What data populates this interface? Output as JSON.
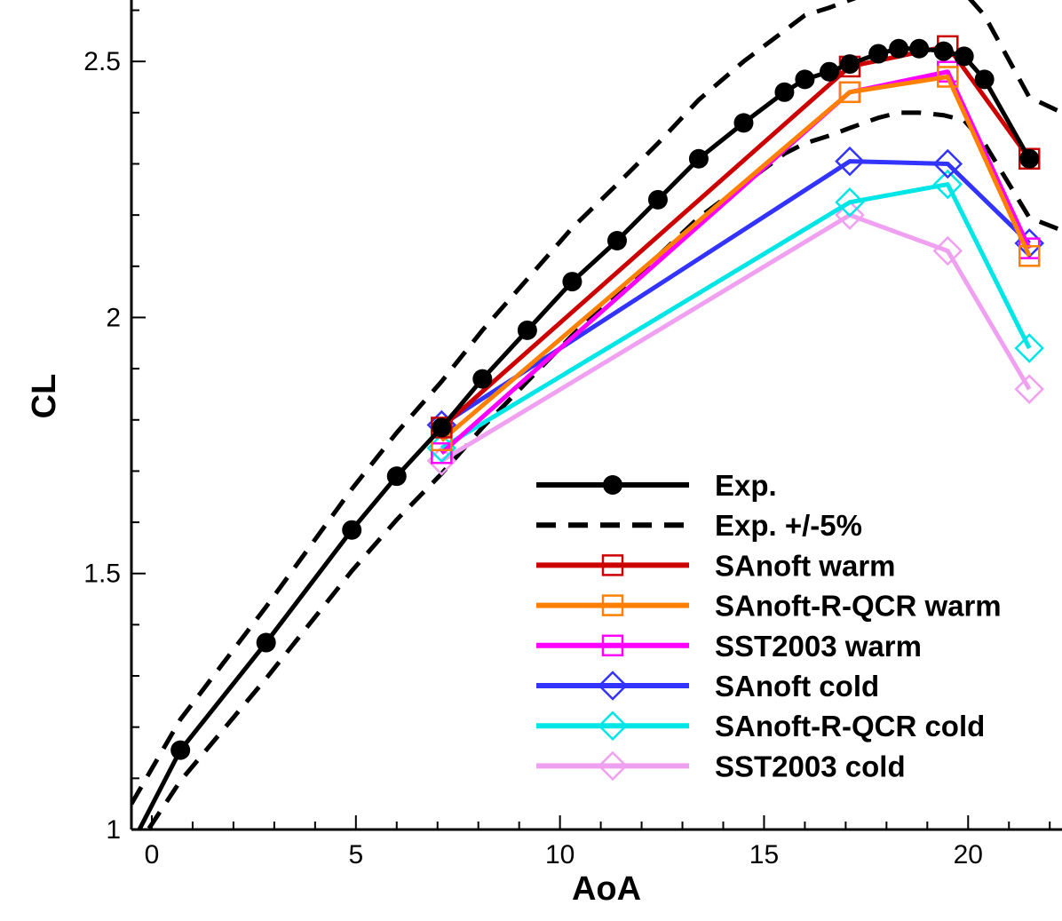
{
  "chart_data": {
    "type": "line",
    "title": "",
    "xlabel": "AoA",
    "ylabel": "CL",
    "xlim": [
      -0.5,
      22.3
    ],
    "ylim": [
      1.0,
      2.62
    ],
    "xticks": [
      0,
      5,
      10,
      15,
      20
    ],
    "yticks": [
      1,
      1.5,
      2,
      2.5
    ],
    "x_tick_labels": [
      "0",
      "5",
      "10",
      "15",
      "20"
    ],
    "y_tick_labels": [
      "1",
      "1.5",
      "2",
      "2.5"
    ],
    "grid": false,
    "legend_position": "bottom-right",
    "series": [
      {
        "name": "Exp.",
        "color": "#000000",
        "style": "solid",
        "marker": "circle",
        "x": [
          0.7,
          2.8,
          4.9,
          6.0,
          7.1,
          8.1,
          9.2,
          10.3,
          11.4,
          12.4,
          13.4,
          14.5,
          15.5,
          16.0,
          16.6,
          17.1,
          17.8,
          18.3,
          18.8,
          19.4,
          19.9,
          20.4,
          21.5
        ],
        "y": [
          1.155,
          1.365,
          1.585,
          1.69,
          1.785,
          1.88,
          1.975,
          2.07,
          2.15,
          2.23,
          2.31,
          2.38,
          2.44,
          2.465,
          2.48,
          2.495,
          2.515,
          2.525,
          2.525,
          2.52,
          2.51,
          2.465,
          2.31
        ]
      },
      {
        "name": "Exp. +/-5%",
        "color": "#000000",
        "style": "dashed",
        "marker": "none",
        "x": [
          -0.5,
          0.7,
          2.8,
          4.9,
          6.0,
          7.1,
          8.1,
          9.2,
          10.3,
          11.4,
          12.4,
          13.4,
          14.5,
          15.5,
          16.0,
          16.6,
          17.1,
          17.8,
          18.3,
          18.8,
          19.4,
          19.9,
          20.4,
          21.5,
          22.3
        ],
        "y_upper": [
          1.05,
          1.215,
          1.435,
          1.665,
          1.775,
          1.875,
          1.975,
          2.075,
          2.175,
          2.26,
          2.34,
          2.425,
          2.5,
          2.56,
          2.59,
          2.605,
          2.62,
          2.64,
          2.65,
          2.65,
          2.645,
          2.635,
          2.59,
          2.43,
          2.4
        ],
        "y_lower": [
          0.95,
          1.095,
          1.295,
          1.505,
          1.605,
          1.695,
          1.785,
          1.875,
          1.965,
          2.045,
          2.12,
          2.195,
          2.26,
          2.32,
          2.34,
          2.355,
          2.37,
          2.39,
          2.4,
          2.4,
          2.395,
          2.385,
          2.34,
          2.195,
          2.17
        ]
      },
      {
        "name": "SAnoft warm",
        "color": "#cc0000",
        "style": "solid",
        "marker": "square",
        "x": [
          7.1,
          17.1,
          19.5,
          21.5
        ],
        "y": [
          1.785,
          2.49,
          2.53,
          2.31
        ]
      },
      {
        "name": "SAnoft-R-QCR warm",
        "color": "#ff8000",
        "style": "solid",
        "marker": "square",
        "x": [
          7.1,
          17.1,
          19.5,
          21.5
        ],
        "y": [
          1.76,
          2.44,
          2.47,
          2.12
        ]
      },
      {
        "name": "SST2003 warm",
        "color": "#ff00ff",
        "style": "solid",
        "marker": "square",
        "x": [
          7.1,
          17.1,
          19.5,
          21.5
        ],
        "y": [
          1.735,
          2.44,
          2.48,
          2.135
        ]
      },
      {
        "name": "SAnoft cold",
        "color": "#3333ff",
        "style": "solid",
        "marker": "diamond",
        "x": [
          7.1,
          17.1,
          19.5,
          21.5
        ],
        "y": [
          1.79,
          2.305,
          2.3,
          2.145
        ]
      },
      {
        "name": "SAnoft-R-QCR cold",
        "color": "#00e5e5",
        "style": "solid",
        "marker": "diamond",
        "x": [
          7.1,
          17.1,
          19.5,
          21.5
        ],
        "y": [
          1.745,
          2.225,
          2.26,
          1.94
        ]
      },
      {
        "name": "SST2003 cold",
        "color": "#f0a0f0",
        "style": "solid",
        "marker": "diamond",
        "x": [
          7.1,
          17.1,
          19.5,
          21.5
        ],
        "y": [
          1.72,
          2.2,
          2.13,
          1.86
        ]
      }
    ]
  }
}
